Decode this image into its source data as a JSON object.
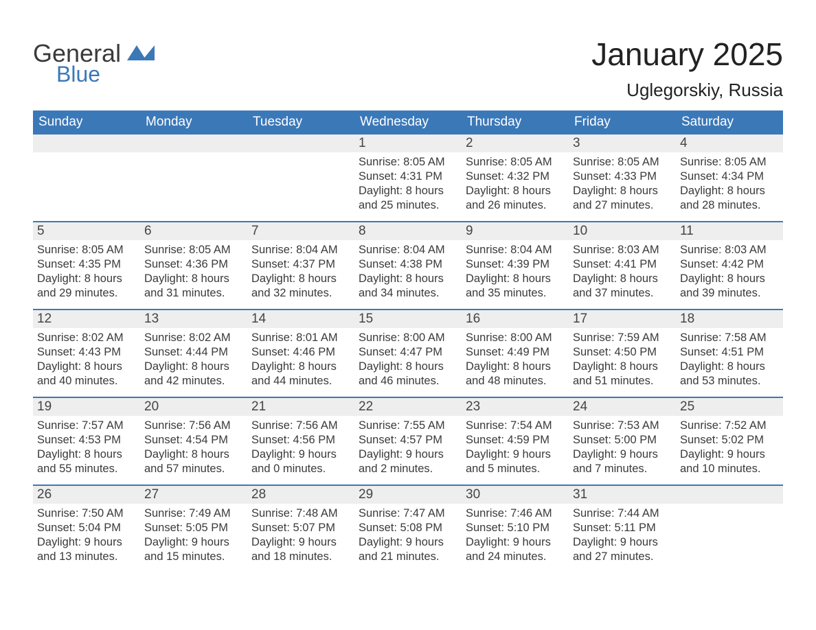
{
  "logo": {
    "part1": "General",
    "part2": "Blue",
    "flag_color": "#3b78b8"
  },
  "header": {
    "month_title": "January 2025",
    "location": "Uglegorskiy, Russia"
  },
  "colors": {
    "header_bg": "#3b78b8",
    "header_text": "#ffffff",
    "daynum_bg": "#eeeeee",
    "week_divider": "#3b78b8",
    "body_text": "#3a3a3a",
    "page_bg": "#ffffff"
  },
  "typography": {
    "month_title_fontsize": 46,
    "location_fontsize": 26,
    "dayheader_fontsize": 19,
    "daynum_fontsize": 19,
    "body_fontsize": 16.5
  },
  "calendar": {
    "day_headers": [
      "Sunday",
      "Monday",
      "Tuesday",
      "Wednesday",
      "Thursday",
      "Friday",
      "Saturday"
    ],
    "weeks": [
      [
        {
          "n": "",
          "sunrise": "",
          "sunset": "",
          "d1": "",
          "d2": ""
        },
        {
          "n": "",
          "sunrise": "",
          "sunset": "",
          "d1": "",
          "d2": ""
        },
        {
          "n": "",
          "sunrise": "",
          "sunset": "",
          "d1": "",
          "d2": ""
        },
        {
          "n": "1",
          "sunrise": "Sunrise: 8:05 AM",
          "sunset": "Sunset: 4:31 PM",
          "d1": "Daylight: 8 hours",
          "d2": "and 25 minutes."
        },
        {
          "n": "2",
          "sunrise": "Sunrise: 8:05 AM",
          "sunset": "Sunset: 4:32 PM",
          "d1": "Daylight: 8 hours",
          "d2": "and 26 minutes."
        },
        {
          "n": "3",
          "sunrise": "Sunrise: 8:05 AM",
          "sunset": "Sunset: 4:33 PM",
          "d1": "Daylight: 8 hours",
          "d2": "and 27 minutes."
        },
        {
          "n": "4",
          "sunrise": "Sunrise: 8:05 AM",
          "sunset": "Sunset: 4:34 PM",
          "d1": "Daylight: 8 hours",
          "d2": "and 28 minutes."
        }
      ],
      [
        {
          "n": "5",
          "sunrise": "Sunrise: 8:05 AM",
          "sunset": "Sunset: 4:35 PM",
          "d1": "Daylight: 8 hours",
          "d2": "and 29 minutes."
        },
        {
          "n": "6",
          "sunrise": "Sunrise: 8:05 AM",
          "sunset": "Sunset: 4:36 PM",
          "d1": "Daylight: 8 hours",
          "d2": "and 31 minutes."
        },
        {
          "n": "7",
          "sunrise": "Sunrise: 8:04 AM",
          "sunset": "Sunset: 4:37 PM",
          "d1": "Daylight: 8 hours",
          "d2": "and 32 minutes."
        },
        {
          "n": "8",
          "sunrise": "Sunrise: 8:04 AM",
          "sunset": "Sunset: 4:38 PM",
          "d1": "Daylight: 8 hours",
          "d2": "and 34 minutes."
        },
        {
          "n": "9",
          "sunrise": "Sunrise: 8:04 AM",
          "sunset": "Sunset: 4:39 PM",
          "d1": "Daylight: 8 hours",
          "d2": "and 35 minutes."
        },
        {
          "n": "10",
          "sunrise": "Sunrise: 8:03 AM",
          "sunset": "Sunset: 4:41 PM",
          "d1": "Daylight: 8 hours",
          "d2": "and 37 minutes."
        },
        {
          "n": "11",
          "sunrise": "Sunrise: 8:03 AM",
          "sunset": "Sunset: 4:42 PM",
          "d1": "Daylight: 8 hours",
          "d2": "and 39 minutes."
        }
      ],
      [
        {
          "n": "12",
          "sunrise": "Sunrise: 8:02 AM",
          "sunset": "Sunset: 4:43 PM",
          "d1": "Daylight: 8 hours",
          "d2": "and 40 minutes."
        },
        {
          "n": "13",
          "sunrise": "Sunrise: 8:02 AM",
          "sunset": "Sunset: 4:44 PM",
          "d1": "Daylight: 8 hours",
          "d2": "and 42 minutes."
        },
        {
          "n": "14",
          "sunrise": "Sunrise: 8:01 AM",
          "sunset": "Sunset: 4:46 PM",
          "d1": "Daylight: 8 hours",
          "d2": "and 44 minutes."
        },
        {
          "n": "15",
          "sunrise": "Sunrise: 8:00 AM",
          "sunset": "Sunset: 4:47 PM",
          "d1": "Daylight: 8 hours",
          "d2": "and 46 minutes."
        },
        {
          "n": "16",
          "sunrise": "Sunrise: 8:00 AM",
          "sunset": "Sunset: 4:49 PM",
          "d1": "Daylight: 8 hours",
          "d2": "and 48 minutes."
        },
        {
          "n": "17",
          "sunrise": "Sunrise: 7:59 AM",
          "sunset": "Sunset: 4:50 PM",
          "d1": "Daylight: 8 hours",
          "d2": "and 51 minutes."
        },
        {
          "n": "18",
          "sunrise": "Sunrise: 7:58 AM",
          "sunset": "Sunset: 4:51 PM",
          "d1": "Daylight: 8 hours",
          "d2": "and 53 minutes."
        }
      ],
      [
        {
          "n": "19",
          "sunrise": "Sunrise: 7:57 AM",
          "sunset": "Sunset: 4:53 PM",
          "d1": "Daylight: 8 hours",
          "d2": "and 55 minutes."
        },
        {
          "n": "20",
          "sunrise": "Sunrise: 7:56 AM",
          "sunset": "Sunset: 4:54 PM",
          "d1": "Daylight: 8 hours",
          "d2": "and 57 minutes."
        },
        {
          "n": "21",
          "sunrise": "Sunrise: 7:56 AM",
          "sunset": "Sunset: 4:56 PM",
          "d1": "Daylight: 9 hours",
          "d2": "and 0 minutes."
        },
        {
          "n": "22",
          "sunrise": "Sunrise: 7:55 AM",
          "sunset": "Sunset: 4:57 PM",
          "d1": "Daylight: 9 hours",
          "d2": "and 2 minutes."
        },
        {
          "n": "23",
          "sunrise": "Sunrise: 7:54 AM",
          "sunset": "Sunset: 4:59 PM",
          "d1": "Daylight: 9 hours",
          "d2": "and 5 minutes."
        },
        {
          "n": "24",
          "sunrise": "Sunrise: 7:53 AM",
          "sunset": "Sunset: 5:00 PM",
          "d1": "Daylight: 9 hours",
          "d2": "and 7 minutes."
        },
        {
          "n": "25",
          "sunrise": "Sunrise: 7:52 AM",
          "sunset": "Sunset: 5:02 PM",
          "d1": "Daylight: 9 hours",
          "d2": "and 10 minutes."
        }
      ],
      [
        {
          "n": "26",
          "sunrise": "Sunrise: 7:50 AM",
          "sunset": "Sunset: 5:04 PM",
          "d1": "Daylight: 9 hours",
          "d2": "and 13 minutes."
        },
        {
          "n": "27",
          "sunrise": "Sunrise: 7:49 AM",
          "sunset": "Sunset: 5:05 PM",
          "d1": "Daylight: 9 hours",
          "d2": "and 15 minutes."
        },
        {
          "n": "28",
          "sunrise": "Sunrise: 7:48 AM",
          "sunset": "Sunset: 5:07 PM",
          "d1": "Daylight: 9 hours",
          "d2": "and 18 minutes."
        },
        {
          "n": "29",
          "sunrise": "Sunrise: 7:47 AM",
          "sunset": "Sunset: 5:08 PM",
          "d1": "Daylight: 9 hours",
          "d2": "and 21 minutes."
        },
        {
          "n": "30",
          "sunrise": "Sunrise: 7:46 AM",
          "sunset": "Sunset: 5:10 PM",
          "d1": "Daylight: 9 hours",
          "d2": "and 24 minutes."
        },
        {
          "n": "31",
          "sunrise": "Sunrise: 7:44 AM",
          "sunset": "Sunset: 5:11 PM",
          "d1": "Daylight: 9 hours",
          "d2": "and 27 minutes."
        },
        {
          "n": "",
          "sunrise": "",
          "sunset": "",
          "d1": "",
          "d2": ""
        }
      ]
    ]
  }
}
